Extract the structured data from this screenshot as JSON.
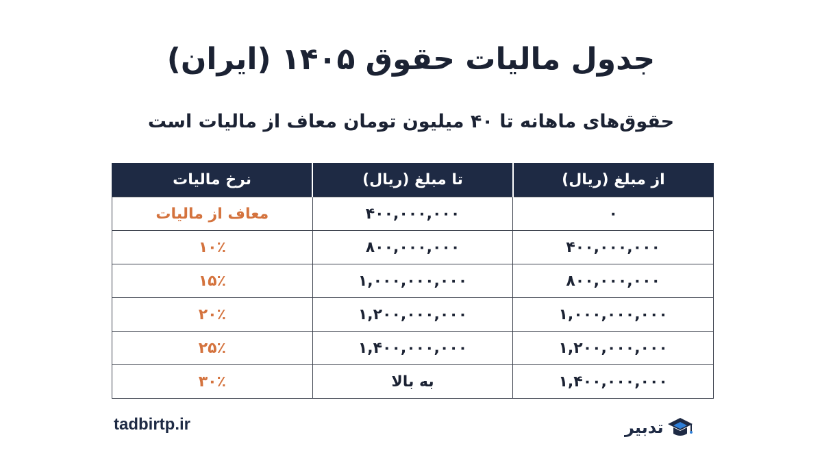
{
  "title": "جدول مالیات حقوق ۱۴۰۵ (ایران)",
  "subtitle": "حقوق‌های ماهانه تا ۴۰ میلیون تومان معاف از مالیات است",
  "table": {
    "headers": [
      "از مبلغ (ریال)",
      "تا مبلغ (ریال)",
      "نرخ مالیات"
    ],
    "rows": [
      [
        "۰",
        "۴۰۰,۰۰۰,۰۰۰",
        "معاف از مالیات"
      ],
      [
        "۴۰۰,۰۰۰,۰۰۰",
        "۸۰۰,۰۰۰,۰۰۰",
        "۱۰٪"
      ],
      [
        "۸۰۰,۰۰۰,۰۰۰",
        "۱,۰۰۰,۰۰۰,۰۰۰",
        "۱۵٪"
      ],
      [
        "۱,۰۰۰,۰۰۰,۰۰۰",
        "۱,۲۰۰,۰۰۰,۰۰۰",
        "۲۰٪"
      ],
      [
        "۱,۲۰۰,۰۰۰,۰۰۰",
        "۱,۴۰۰,۰۰۰,۰۰۰",
        "۲۵٪"
      ],
      [
        "۱,۴۰۰,۰۰۰,۰۰۰",
        "به بالا",
        "۳۰٪"
      ]
    ]
  },
  "footer": {
    "website": "tadbirtp.ir",
    "logo_text": "تدبیر"
  },
  "colors": {
    "header_bg": "#1e2a44",
    "rate_text": "#d4733e",
    "logo_accent": "#2f7fd8"
  }
}
